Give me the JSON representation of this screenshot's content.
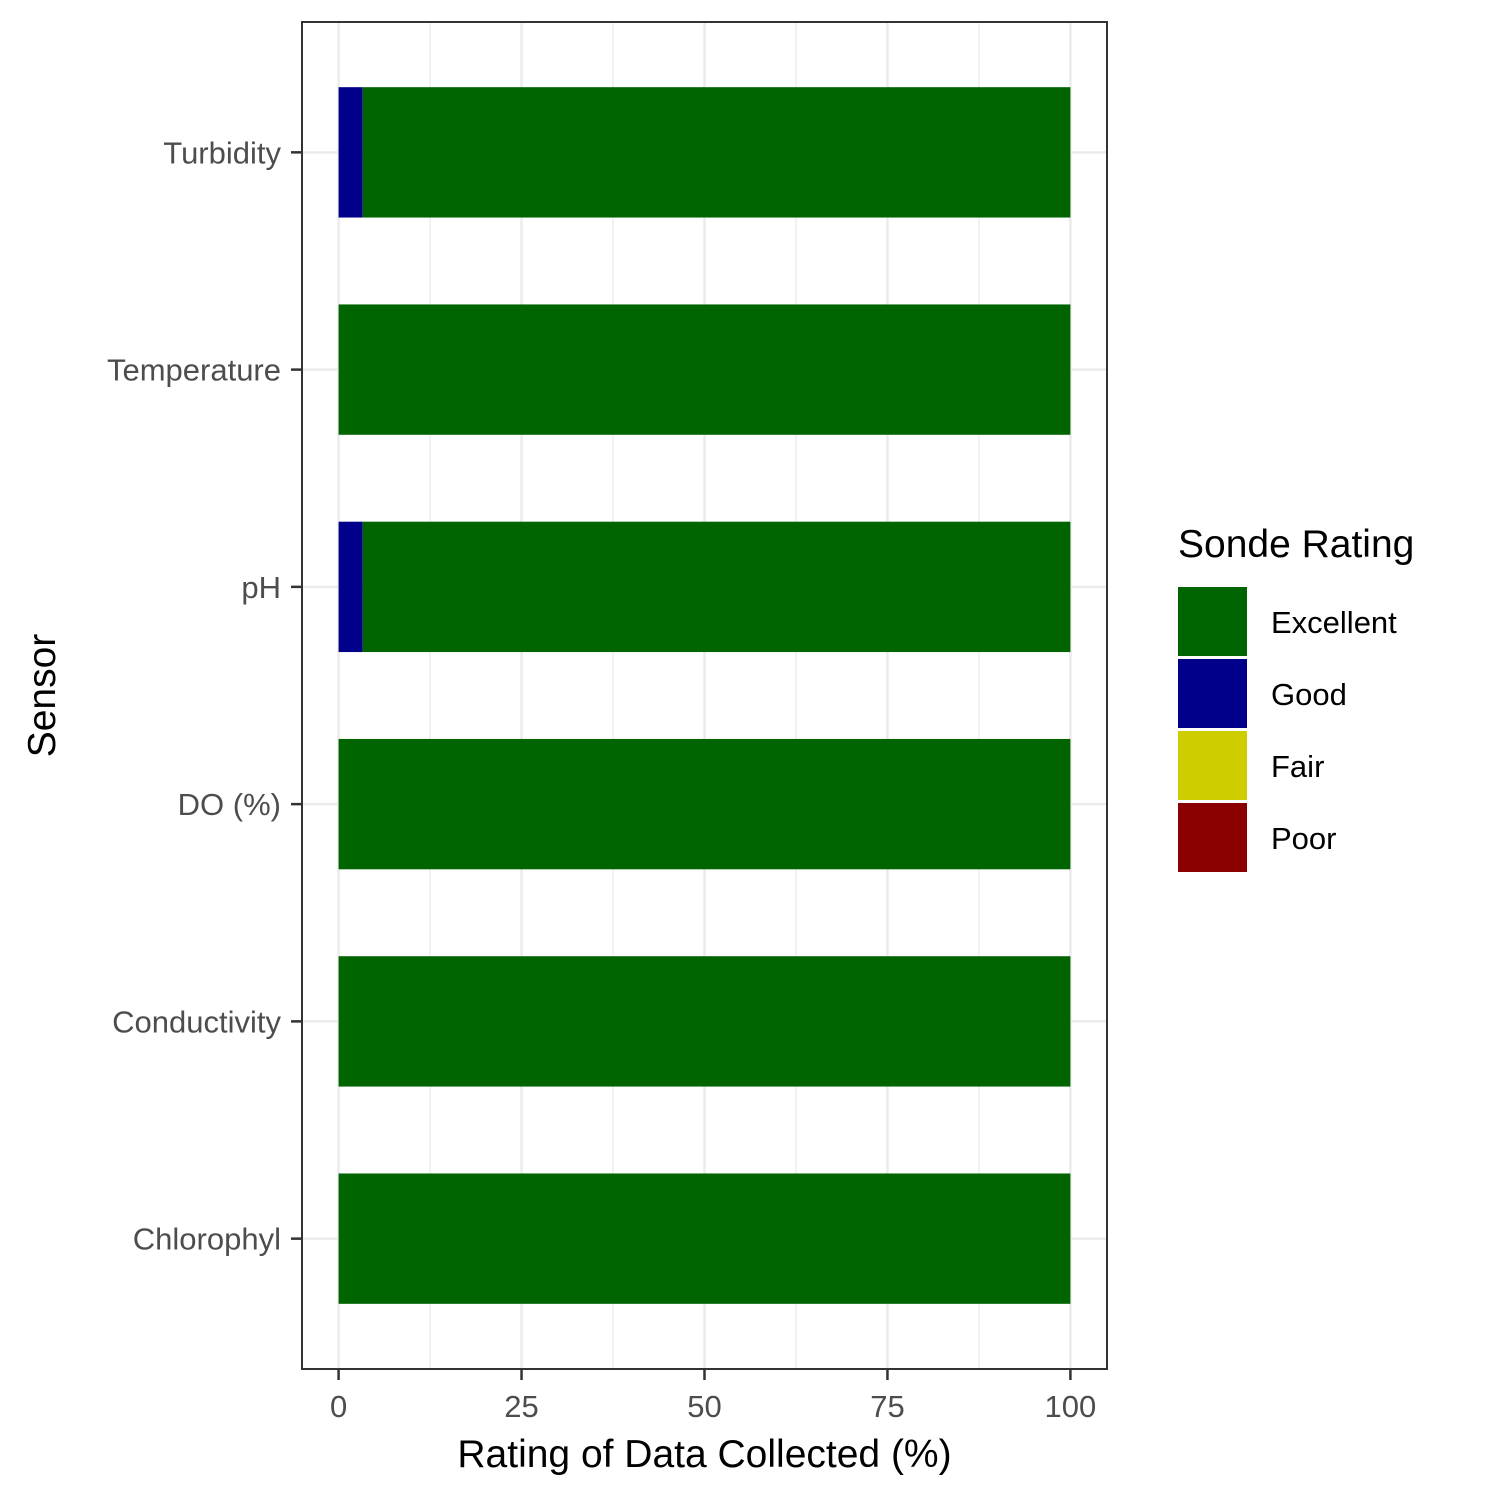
{
  "chart_data": {
    "type": "bar",
    "orientation": "horizontal",
    "stacked": true,
    "categories": [
      "Chlorophyl",
      "Conductivity",
      "DO (%)",
      "pH",
      "Temperature",
      "Turbidity"
    ],
    "series": [
      {
        "name": "Excellent",
        "color": "#006400",
        "values": [
          100,
          100,
          100,
          96.7,
          100,
          96.7
        ]
      },
      {
        "name": "Good",
        "color": "#00008B",
        "values": [
          0,
          0,
          0,
          3.3,
          0,
          3.3
        ]
      },
      {
        "name": "Fair",
        "color": "#CDCD00",
        "values": [
          0,
          0,
          0,
          0,
          0,
          0
        ]
      },
      {
        "name": "Poor",
        "color": "#8B0000",
        "values": [
          0,
          0,
          0,
          0,
          0,
          0
        ]
      }
    ],
    "title": "",
    "xlabel": "Rating of Data Collected (%)",
    "ylabel": "Sensor",
    "xlim": [
      -5,
      105
    ],
    "xticks": [
      "0",
      "25",
      "50",
      "75",
      "100"
    ],
    "grid": true,
    "legend": {
      "title": "Sonde Rating",
      "position": "right"
    }
  }
}
